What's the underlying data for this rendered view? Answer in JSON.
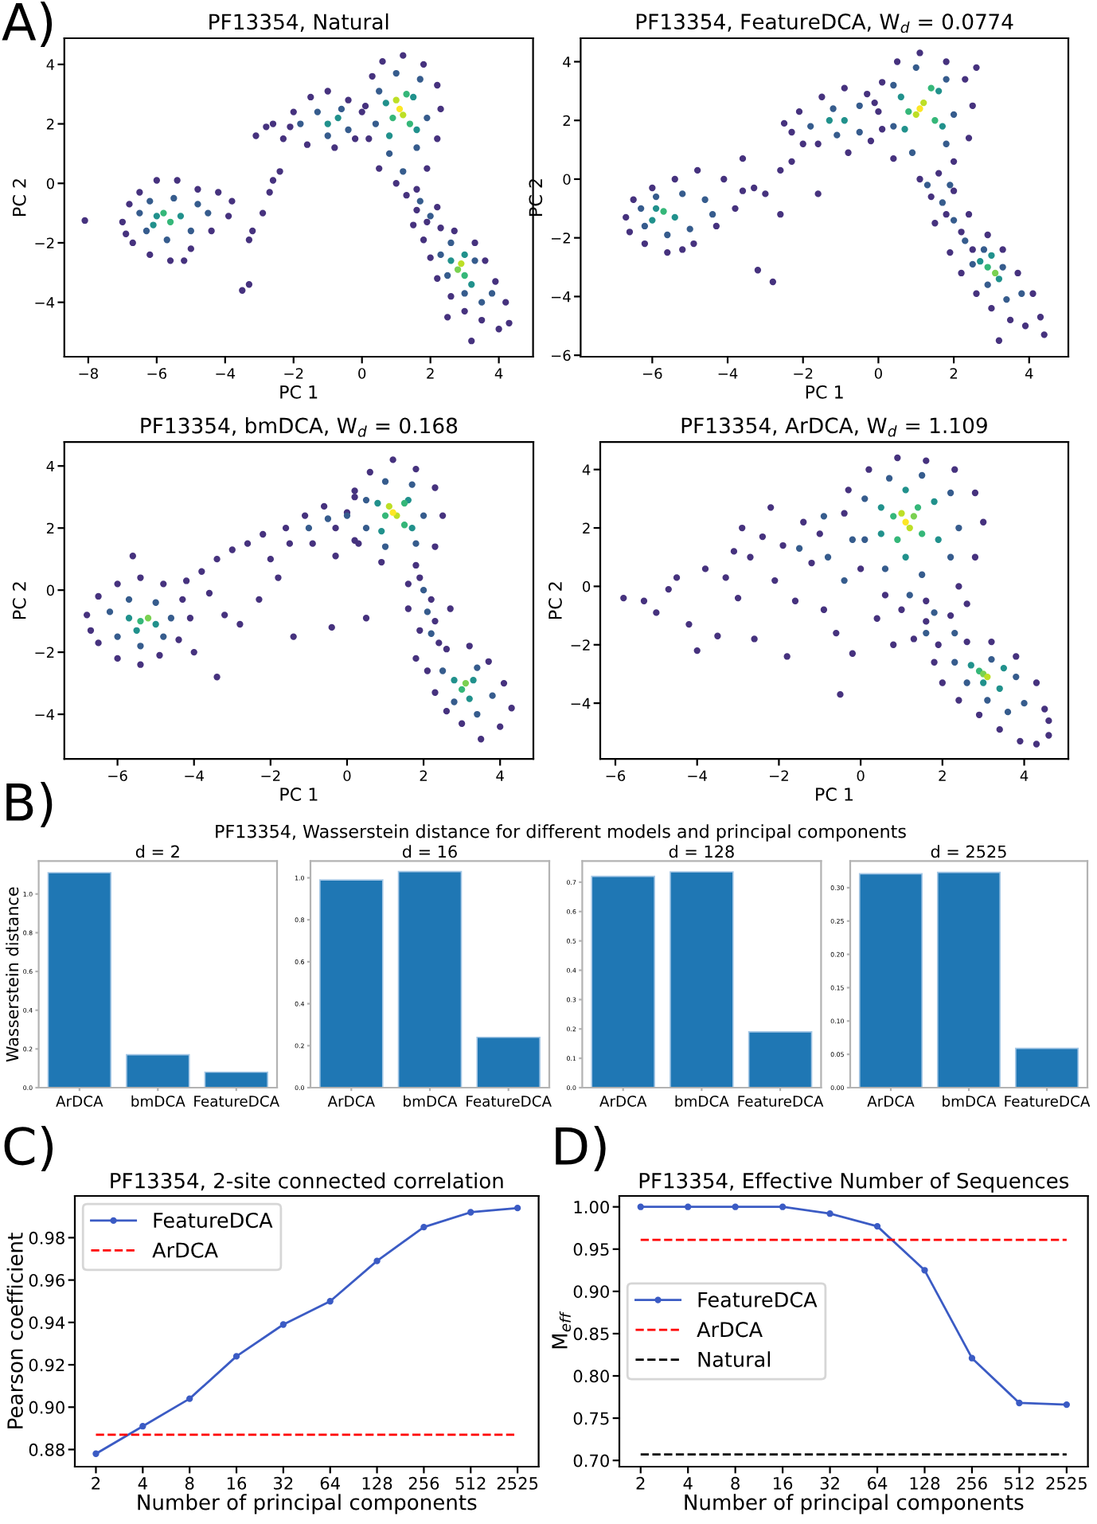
{
  "chart_data": [
    {
      "type": "scatter",
      "title": "PF13354, Natural",
      "xlabel": "PC 1",
      "ylabel": "PC 2",
      "annotations": [
        "A)"
      ],
      "xlim": [
        -8.7,
        5.0
      ],
      "ylim": [
        -5.83,
        4.88
      ],
      "xticks": [
        -8,
        -6,
        -4,
        -2,
        0,
        2,
        4
      ],
      "yticks": [
        -4,
        -2,
        0,
        2,
        4
      ],
      "series": [
        {
          "color": "#46327e",
          "x": [
            -8.1,
            -7.0,
            -6.8,
            -6.5,
            -6.0,
            -5.4,
            -4.8,
            -4.2,
            -3.8,
            -3.9,
            -4.4,
            -5.0,
            -5.6,
            -6.2,
            -6.7,
            -6.9,
            -5.2,
            -3.5,
            -3.3,
            -3.2,
            -3.3,
            -2.9,
            -2.7,
            -2.6,
            -2.4,
            -2.8,
            -3.1,
            -2.6,
            -2.3,
            -2.0,
            -1.5,
            -1.0,
            -0.4,
            0.0,
            -0.2,
            -0.8,
            -1.6,
            -2.1,
            0.3,
            0.6,
            1.2,
            1.8,
            2.2,
            2.3,
            2.2,
            1.9,
            0.5,
            0.2,
            0.1,
            1.0,
            1.3,
            1.6,
            1.9,
            2.3,
            2.2,
            1.6,
            1.5,
            1.8,
            2.0,
            2.2,
            2.6,
            3.0,
            3.5,
            4.0,
            4.3,
            4.2,
            3.9,
            3.6,
            3.3,
            2.7,
            3.2,
            2.5
          ],
          "values": [
            -1.25,
            -1.3,
            -0.7,
            -0.3,
            0.1,
            0.1,
            -0.2,
            -0.3,
            -0.6,
            -1.1,
            -1.6,
            -2.2,
            -2.6,
            -2.4,
            -2.0,
            -1.7,
            -2.6,
            -3.6,
            -3.4,
            -1.6,
            -1.9,
            -1.0,
            -0.3,
            0.1,
            0.4,
            1.9,
            1.6,
            2.0,
            1.5,
            2.4,
            2.9,
            3.1,
            2.8,
            2.4,
            1.5,
            1.2,
            1.3,
            1.9,
            3.6,
            4.1,
            4.3,
            4.0,
            3.3,
            2.5,
            1.5,
            0.5,
            0.5,
            1.5,
            2.6,
            0.0,
            -0.4,
            -0.9,
            -1.3,
            -1.5,
            -0.8,
            -0.2,
            -1.4,
            -1.9,
            -2.5,
            -3.2,
            -3.8,
            -4.3,
            -4.6,
            -4.9,
            -4.7,
            -4.0,
            -3.3,
            -2.6,
            -2.0,
            -1.6,
            -5.3,
            -4.5
          ]
        },
        {
          "color": "#365c8d",
          "x": [
            -6.5,
            -6.2,
            -5.5,
            -4.8,
            -4.5,
            -5.0,
            -5.7,
            -6.3,
            -1.8,
            -1.3,
            -0.6,
            -0.4,
            -1.0,
            0.5,
            1.0,
            1.7,
            1.9,
            1.6,
            0.8,
            0.4,
            1.2,
            1.7,
            2.0,
            2.3,
            2.5,
            3.0,
            3.5,
            3.8,
            3.3,
            2.6
          ],
          "values": [
            -1.0,
            -0.6,
            -0.5,
            -0.7,
            -1.0,
            -1.6,
            -1.9,
            -1.6,
            2.0,
            2.4,
            2.5,
            1.8,
            1.6,
            3.1,
            3.7,
            3.5,
            2.2,
            1.2,
            1.0,
            2.0,
            0.4,
            -0.6,
            -1.1,
            -2.4,
            -3.1,
            -3.7,
            -4.0,
            -3.7,
            -2.6,
            -2.0
          ]
        },
        {
          "color": "#21918c",
          "x": [
            -6.0,
            -5.3,
            -6.1,
            -1.0,
            -0.7,
            0.7,
            1.5,
            1.6,
            0.8,
            2.6,
            3.2,
            3.0
          ],
          "values": [
            -1.1,
            -1.1,
            -1.4,
            2.0,
            2.2,
            2.7,
            2.9,
            1.8,
            1.6,
            -2.6,
            -3.4,
            -2.4
          ]
        },
        {
          "color": "#35b779",
          "x": [
            -5.6,
            -5.8,
            0.9,
            1.3,
            1.4,
            3.0
          ],
          "values": [
            -1.3,
            -1.0,
            2.2,
            3.0,
            2.0,
            -3.1
          ]
        },
        {
          "color": "#7ad151",
          "x": [
            2.8
          ],
          "values": [
            -2.9
          ]
        },
        {
          "color": "#bddf26",
          "x": [
            1.0,
            1.2,
            2.9
          ],
          "values": [
            2.8,
            2.3,
            -2.7
          ]
        },
        {
          "color": "#fde725",
          "x": [
            1.1
          ],
          "values": [
            2.5
          ]
        }
      ]
    },
    {
      "type": "scatter",
      "title": "PF13354, FeatureDCA, W$_{d}$ = 0.0774",
      "xlabel": "PC 1",
      "ylabel": "PC 2",
      "xlim": [
        -7.9,
        5.04
      ],
      "ylim": [
        -6.05,
        4.8
      ],
      "xticks": [
        -6,
        -4,
        -2,
        0,
        2,
        4
      ],
      "yticks": [
        -6,
        -4,
        -2,
        0,
        2,
        4
      ],
      "series": [
        {
          "color": "#46327e",
          "x": [
            -6.7,
            -6.5,
            -6.0,
            -5.4,
            -4.8,
            -4.1,
            -3.6,
            -3.8,
            -4.3,
            -4.9,
            -5.6,
            -6.2,
            -6.6,
            -5.2,
            -3.3,
            -3.0,
            -2.6,
            -2.3,
            -2.6,
            -3.2,
            -2.8,
            -1.6,
            -2.0,
            -3.6,
            -2.3,
            -2.1,
            -1.5,
            -0.9,
            -0.3,
            0.0,
            -0.2,
            -0.8,
            -1.6,
            -2.5,
            0.1,
            0.5,
            1.1,
            1.8,
            2.3,
            2.5,
            2.4,
            2.0,
            0.4,
            0.1,
            -0.1,
            2.6,
            1.1,
            1.4,
            1.8,
            2.2,
            2.5,
            2.0,
            1.6,
            2.4,
            1.5,
            1.9,
            2.2,
            2.6,
            3.0,
            3.5,
            3.9,
            4.3,
            4.1,
            3.7,
            3.3,
            2.9,
            3.2,
            4.4
          ],
          "values": [
            -1.3,
            -0.7,
            -0.3,
            0.0,
            0.3,
            0.0,
            -0.4,
            -1.0,
            -1.6,
            -2.2,
            -2.5,
            -2.2,
            -1.8,
            -2.4,
            -0.3,
            -0.5,
            0.3,
            0.6,
            -1.2,
            -3.1,
            -3.5,
            -0.5,
            1.2,
            0.7,
            1.6,
            2.3,
            2.8,
            3.1,
            2.9,
            2.3,
            1.3,
            0.9,
            1.2,
            1.9,
            3.3,
            4.0,
            4.3,
            4.0,
            3.4,
            2.5,
            1.4,
            0.6,
            0.7,
            1.7,
            2.6,
            3.8,
            0.0,
            -0.6,
            -1.2,
            -1.8,
            -2.4,
            -0.4,
            0.2,
            -1.2,
            -1.5,
            -2.5,
            -3.2,
            -3.9,
            -4.4,
            -4.8,
            -5.0,
            -4.7,
            -3.9,
            -3.2,
            -2.4,
            -1.9,
            -5.5,
            -5.3
          ]
        },
        {
          "color": "#365c8d",
          "x": [
            -6.3,
            -5.9,
            -5.2,
            -4.6,
            -4.4,
            -5.0,
            -5.6,
            -6.2,
            -1.8,
            -1.2,
            -0.5,
            -0.5,
            -1.1,
            0.4,
            1.0,
            1.8,
            2.0,
            1.8,
            0.9,
            0.4,
            1.3,
            1.7,
            2.0,
            2.3,
            1.9,
            2.5,
            2.9,
            3.4,
            3.8,
            3.3,
            2.8
          ],
          "values": [
            -1.0,
            -0.6,
            -0.5,
            -0.7,
            -1.2,
            -1.7,
            -1.9,
            -1.6,
            1.8,
            2.4,
            2.5,
            1.6,
            1.5,
            3.2,
            3.8,
            3.4,
            2.2,
            1.2,
            0.9,
            1.8,
            -0.2,
            -0.8,
            -1.4,
            -2.1,
            -0.2,
            -2.9,
            -3.6,
            -4.1,
            -3.9,
            -3.0,
            -2.4
          ]
        },
        {
          "color": "#21918c",
          "x": [
            -5.9,
            -5.4,
            -6.0,
            -0.9,
            -1.3,
            0.6,
            1.6,
            1.7,
            0.7,
            2.7,
            3.2,
            3.0
          ],
          "values": [
            -1.0,
            -1.3,
            -1.4,
            2.0,
            2.0,
            2.8,
            3.0,
            1.8,
            1.7,
            -2.8,
            -3.4,
            -2.6
          ]
        },
        {
          "color": "#35b779",
          "x": [
            -5.7,
            0.8,
            1.4,
            1.5,
            2.9
          ],
          "values": [
            -1.1,
            2.3,
            3.1,
            2.0,
            -3.0
          ]
        },
        {
          "color": "#7ad151",
          "x": [
            3.1
          ],
          "values": [
            -3.2
          ]
        },
        {
          "color": "#bddf26",
          "x": [
            1.0,
            1.2
          ],
          "values": [
            2.2,
            2.6
          ]
        },
        {
          "color": "#fde725",
          "x": [
            1.1
          ],
          "values": [
            2.4
          ]
        }
      ]
    },
    {
      "type": "scatter",
      "title": "PF13354, bmDCA, W$_{d}$ = 0.168",
      "xlabel": "PC 1",
      "ylabel": "PC 2",
      "xlim": [
        -7.39,
        4.87
      ],
      "ylim": [
        -5.44,
        4.77
      ],
      "xticks": [
        -6,
        -4,
        -2,
        0,
        2,
        4
      ],
      "yticks": [
        -4,
        -2,
        0,
        2,
        4
      ],
      "series": [
        {
          "color": "#46327e",
          "x": [
            -6.8,
            -6.5,
            -6.0,
            -5.4,
            -4.8,
            -4.3,
            -4.1,
            -4.4,
            -4.9,
            -5.4,
            -6.0,
            -6.5,
            -6.7,
            -5.6,
            -4.2,
            -3.8,
            -3.4,
            -3.0,
            -2.6,
            -2.2,
            -3.6,
            -3.2,
            -3.4,
            -2.8,
            -2.3,
            -1.8,
            -1.4,
            -2.0,
            -4.0,
            -1.6,
            -1.1,
            -0.6,
            -0.3,
            -0.9,
            -0.3,
            0.2,
            -1.5,
            0.2,
            -0.4,
            0.5,
            0.2,
            0.6,
            1.2,
            1.8,
            2.3,
            2.5,
            2.3,
            1.8,
            0.9,
            0.3,
            0.0,
            1.9,
            2.2,
            2.3,
            2.4,
            1.6,
            1.9,
            1.6,
            2.7,
            1.8,
            2.1,
            2.3,
            2.6,
            3.0,
            3.5,
            4.0,
            4.3,
            4.1,
            3.7,
            3.2,
            2.6
          ],
          "values": [
            -0.8,
            -0.2,
            0.2,
            0.4,
            0.2,
            -0.3,
            -0.9,
            -1.6,
            -2.1,
            -2.4,
            -2.2,
            -1.7,
            -1.3,
            1.1,
            0.3,
            0.6,
            1.0,
            1.3,
            1.5,
            1.8,
            -0.1,
            -0.8,
            -2.8,
            -1.1,
            -0.3,
            0.4,
            -1.5,
            1.0,
            -2.0,
            2.0,
            2.4,
            2.7,
            2.0,
            1.5,
            1.1,
            1.6,
            1.5,
            3.0,
            -1.2,
            -0.9,
            3.2,
            3.8,
            4.2,
            3.9,
            3.3,
            2.4,
            1.4,
            0.8,
            0.9,
            1.5,
            2.5,
            0.4,
            -0.3,
            -1.0,
            -1.7,
            -0.6,
            -1.3,
            0.2,
            -0.6,
            -2.2,
            -2.6,
            -3.3,
            -3.9,
            -4.3,
            -4.8,
            -4.4,
            -3.8,
            -3.0,
            -2.3,
            -1.8,
            -1.9
          ]
        },
        {
          "color": "#365c8d",
          "x": [
            -6.2,
            -5.7,
            -5.0,
            -4.6,
            -4.8,
            -5.4,
            -6.0,
            -1.0,
            -0.5,
            0.0,
            0.5,
            1.0,
            1.7,
            2.0,
            1.8,
            1.0,
            0.5,
            2.0,
            2.1,
            2.2,
            2.5,
            2.8,
            3.4,
            3.8,
            3.4
          ],
          "values": [
            -0.7,
            -0.3,
            -0.4,
            -0.9,
            -1.5,
            -1.8,
            -1.5,
            2.0,
            2.3,
            2.4,
            2.9,
            3.5,
            3.4,
            2.4,
            1.5,
            1.4,
            2.0,
            0.0,
            -0.7,
            -1.4,
            -2.6,
            -3.6,
            -4.0,
            -3.4,
            -2.5
          ]
        },
        {
          "color": "#21918c",
          "x": [
            -5.7,
            -5.0,
            -5.5,
            0.8,
            1.6,
            1.7,
            0.9,
            2.8,
            3.2,
            3.3
          ],
          "values": [
            -0.9,
            -1.1,
            -1.3,
            2.8,
            2.9,
            2.0,
            1.9,
            -2.9,
            -3.5,
            -2.9
          ]
        },
        {
          "color": "#35b779",
          "x": [
            -5.4,
            1.0,
            1.5,
            1.5,
            3.0
          ],
          "values": [
            -1.0,
            2.4,
            2.8,
            2.1,
            -3.2
          ]
        },
        {
          "color": "#7ad151",
          "x": [
            -5.2,
            3.1
          ],
          "values": [
            -0.9,
            -3.0
          ]
        },
        {
          "color": "#bddf26",
          "x": [
            1.3,
            1.1
          ],
          "values": [
            2.4,
            2.7
          ]
        },
        {
          "color": "#fde725",
          "x": [
            1.2
          ],
          "values": [
            2.5
          ]
        }
      ]
    },
    {
      "type": "scatter",
      "title": "PF13354, ArDCA, W$_{d}$ = 1.109",
      "xlabel": "PC 1",
      "ylabel": "PC 2",
      "xlim": [
        -6.37,
        5.08
      ],
      "ylim": [
        -5.91,
        4.94
      ],
      "xticks": [
        -6,
        -4,
        -2,
        0,
        2,
        4
      ],
      "yticks": [
        -4,
        -2,
        0,
        2,
        4
      ],
      "series": [
        {
          "color": "#46327e",
          "x": [
            -5.8,
            -5.3,
            -5.0,
            -4.7,
            -4.5,
            -4.2,
            -4.0,
            -3.8,
            -3.5,
            -3.3,
            -3.1,
            -3.0,
            -2.7,
            -2.6,
            -2.4,
            -2.2,
            -2.1,
            -1.9,
            -1.6,
            -1.8,
            -1.4,
            -1.2,
            -0.9,
            -0.6,
            -0.5,
            -1.0,
            -0.2,
            -2.9,
            -0.3,
            0.2,
            0.9,
            1.6,
            2.3,
            2.8,
            3.0,
            2.8,
            2.4,
            1.6,
            0.6,
            0.0,
            -0.4,
            1.0,
            1.6,
            2.2,
            1.3,
            0.4,
            2.6,
            0.8,
            1.9,
            1.8,
            2.0,
            2.4,
            2.9,
            3.4,
            3.9,
            4.3,
            4.6,
            4.5,
            4.3,
            3.8,
            3.2,
            2.6,
            4.6
          ],
          "values": [
            -0.4,
            -0.5,
            -0.9,
            -0.1,
            0.3,
            -1.3,
            -2.2,
            0.6,
            -1.7,
            0.3,
            1.2,
            -0.4,
            1.0,
            -1.8,
            1.7,
            2.7,
            0.2,
            1.4,
            -0.5,
            -2.4,
            2.2,
            0.8,
            -0.8,
            -1.6,
            -3.7,
            1.8,
            -2.3,
            2.0,
            3.3,
            4.0,
            4.4,
            4.3,
            4.0,
            3.2,
            2.2,
            1.0,
            0.0,
            -0.5,
            -0.3,
            0.6,
            2.5,
            -0.8,
            -1.2,
            -1.0,
            -1.8,
            -1.1,
            -0.6,
            -2.0,
            -2.0,
            -2.6,
            -3.3,
            -3.9,
            -4.4,
            -4.9,
            -5.3,
            -5.4,
            -5.1,
            -4.2,
            -3.3,
            -2.4,
            -1.9,
            -1.9,
            -4.6
          ]
        },
        {
          "color": "#365c8d",
          "x": [
            -1.5,
            -0.9,
            -0.8,
            -0.4,
            -0.2,
            0.1,
            0.7,
            1.5,
            2.2,
            2.4,
            2.2,
            1.5,
            0.6,
            0.1,
            1.2,
            1.8,
            2.3,
            1.6,
            2.3,
            2.6,
            3.1,
            3.6,
            4.0,
            3.8,
            3.2
          ],
          "values": [
            1.3,
            2.4,
            1.0,
            0.2,
            1.6,
            3.0,
            3.7,
            3.8,
            3.2,
            2.0,
            1.0,
            0.4,
            0.6,
            1.6,
            -0.3,
            -0.9,
            -1.6,
            -1.6,
            -2.6,
            -3.3,
            -3.9,
            -4.3,
            -4.0,
            -3.1,
            -2.5
          ]
        },
        {
          "color": "#21918c",
          "x": [
            0.5,
            1.1,
            1.8,
            1.9,
            1.1,
            0.5,
            2.7,
            3.4,
            3.0,
            3.5
          ],
          "values": [
            2.7,
            3.3,
            2.9,
            1.6,
            1.0,
            1.8,
            -2.7,
            -3.5,
            -3.3,
            -2.8
          ]
        },
        {
          "color": "#35b779",
          "x": [
            0.8,
            1.4,
            1.5,
            0.9,
            2.9
          ],
          "values": [
            2.4,
            2.7,
            1.8,
            1.6,
            -2.9
          ]
        },
        {
          "color": "#7ad151",
          "x": [
            1.3,
            3.0
          ],
          "values": [
            2.4,
            -3.0
          ]
        },
        {
          "color": "#bddf26",
          "x": [
            1.0,
            1.2,
            3.1
          ],
          "values": [
            2.5,
            2.0,
            -3.1
          ]
        },
        {
          "color": "#fde725",
          "x": [
            1.1
          ],
          "values": [
            2.2
          ]
        }
      ]
    },
    {
      "type": "bar",
      "title": "d = 2",
      "ylabel": "Wasserstein distance",
      "annotations": [
        "B)",
        "PF13354, Wasserstein distance for different models and principal components"
      ],
      "categories": [
        "ArDCA",
        "bmDCA",
        "FeatureDCA"
      ],
      "values": [
        1.11,
        0.17,
        0.08
      ],
      "color": "#1f77b4",
      "ylim": [
        0,
        1.17
      ],
      "yticks": [
        {
          "value": 0,
          "label": "0.0"
        },
        0.2,
        0.4,
        0.6,
        0.8,
        {
          "value": 1,
          "label": "1.0"
        }
      ]
    },
    {
      "type": "bar",
      "title": "d = 16",
      "categories": [
        "ArDCA",
        "bmDCA",
        "FeatureDCA"
      ],
      "values": [
        0.99,
        1.03,
        0.24
      ],
      "color": "#1f77b4",
      "ylim": [
        0,
        1.08
      ],
      "yticks": [
        {
          "value": 0,
          "label": "0.0"
        },
        0.2,
        0.4,
        0.6,
        0.8,
        {
          "value": 1,
          "label": "1.0"
        }
      ]
    },
    {
      "type": "bar",
      "title": "d = 128",
      "categories": [
        "ArDCA",
        "bmDCA",
        "FeatureDCA"
      ],
      "values": [
        0.72,
        0.735,
        0.19
      ],
      "color": "#1f77b4",
      "ylim": [
        0,
        0.772
      ],
      "yticks": [
        {
          "value": 0,
          "label": "0.0"
        },
        0.1,
        0.2,
        0.3,
        0.4,
        0.5,
        0.6,
        0.7
      ]
    },
    {
      "type": "bar",
      "title": "d = 2525",
      "categories": [
        "ArDCA",
        "bmDCA",
        "FeatureDCA"
      ],
      "values": [
        0.321,
        0.323,
        0.059
      ],
      "color": "#1f77b4",
      "ylim": [
        0,
        0.34
      ],
      "yticks": [
        {
          "value": 0,
          "label": "0.00"
        },
        {
          "value": 0.05,
          "label": "0.05"
        },
        {
          "value": 0.1,
          "label": "0.10"
        },
        {
          "value": 0.15,
          "label": "0.15"
        },
        {
          "value": 0.2,
          "label": "0.20"
        },
        {
          "value": 0.25,
          "label": "0.25"
        },
        {
          "value": 0.3,
          "label": "0.30"
        }
      ]
    },
    {
      "type": "line",
      "title": "PF13354, 2-site connected correlation",
      "xlabel": "Number of principal components",
      "ylabel": "Pearson coefficient",
      "annotations": [
        "C)"
      ],
      "categories": [
        "2",
        "4",
        "8",
        "16",
        "32",
        "64",
        "128",
        "256",
        "512",
        "2525"
      ],
      "series": [
        {
          "name": "FeatureDCA",
          "color": "#3b5bc4",
          "marker": "circle",
          "line_style": "solid",
          "values": [
            0.878,
            0.891,
            0.904,
            0.924,
            0.939,
            0.95,
            0.969,
            0.985,
            0.992,
            0.994
          ]
        },
        {
          "name": "ArDCA",
          "color": "#ff0000",
          "marker": "none",
          "line_style": "dashed",
          "values": [
            0.887,
            0.887,
            0.887,
            0.887,
            0.887,
            0.887,
            0.887,
            0.887,
            0.887,
            0.887
          ]
        }
      ],
      "ylim": [
        0.8719,
        0.9997
      ],
      "yticks": [
        0.88,
        {
          "value": 0.9,
          "label": "0.90"
        },
        0.92,
        0.94,
        0.96,
        0.98
      ],
      "legend": "top left"
    },
    {
      "type": "line",
      "title": "PF13354, Effective Number of Sequences",
      "xlabel": "Number of principal components",
      "ylabel": "M$_{eff}$",
      "annotations": [
        "D)"
      ],
      "categories": [
        "2",
        "4",
        "8",
        "16",
        "32",
        "64",
        "128",
        "256",
        "512",
        "2525"
      ],
      "series": [
        {
          "name": "FeatureDCA",
          "color": "#3b5bc4",
          "marker": "circle",
          "line_style": "solid",
          "values": [
            1.0,
            1.0,
            1.0,
            1.0,
            0.992,
            0.977,
            0.925,
            0.821,
            0.768,
            0.766
          ]
        },
        {
          "name": "ArDCA",
          "color": "#ff0000",
          "marker": "none",
          "line_style": "dashed",
          "values": [
            0.961,
            0.961,
            0.961,
            0.961,
            0.961,
            0.961,
            0.961,
            0.961,
            0.961,
            0.961
          ]
        },
        {
          "name": "Natural",
          "color": "#000000",
          "marker": "none",
          "line_style": "dashed",
          "values": [
            0.707,
            0.707,
            0.707,
            0.707,
            0.707,
            0.707,
            0.707,
            0.707,
            0.707,
            0.707
          ]
        }
      ],
      "ylim": [
        0.6926,
        1.0129
      ],
      "yticks": [
        {
          "value": 0.7,
          "label": "0.70"
        },
        0.75,
        {
          "value": 0.8,
          "label": "0.80"
        },
        0.85,
        {
          "value": 0.9,
          "label": "0.90"
        },
        0.95,
        {
          "value": 1.0,
          "label": "1.00"
        }
      ],
      "legend": "center left"
    }
  ]
}
